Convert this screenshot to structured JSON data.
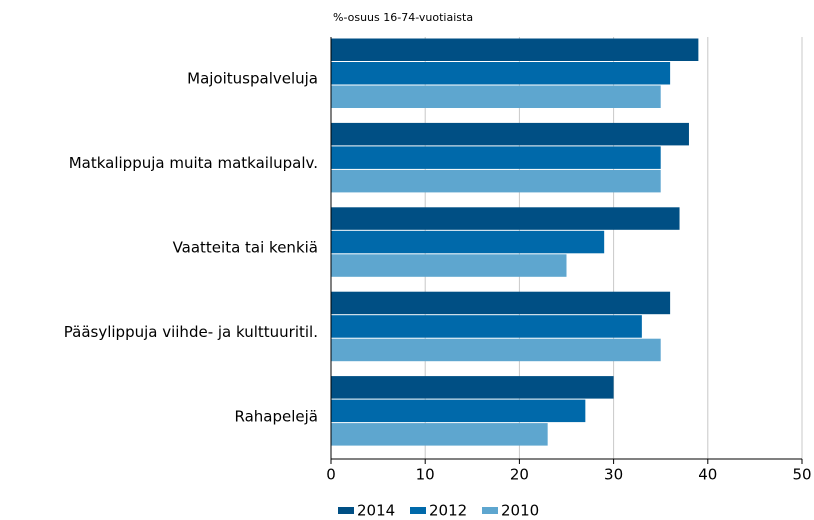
{
  "chart_data": {
    "type": "barh",
    "subtitle": "%-osuus 16-74-vuotiaista",
    "categories": [
      "Majoituspalveluja",
      "Matkalippuja muita matkailupalv.",
      "Vaatteita tai kenkiä",
      "Pääsylippuja viihde- ja kulttuuritil.",
      "Rahapelejä"
    ],
    "series": [
      {
        "name": "2014",
        "color": "#004f84",
        "values": [
          39,
          38,
          37,
          36,
          30
        ]
      },
      {
        "name": "2012",
        "color": "#0069aa",
        "values": [
          36,
          35,
          29,
          33,
          27
        ]
      },
      {
        "name": "2010",
        "color": "#5ea6cf",
        "values": [
          35,
          35,
          25,
          35,
          23
        ]
      }
    ],
    "xlim": [
      0,
      50
    ],
    "xticks": [
      0,
      10,
      20,
      30,
      40,
      50
    ],
    "grid": true,
    "legend": "bottom"
  }
}
